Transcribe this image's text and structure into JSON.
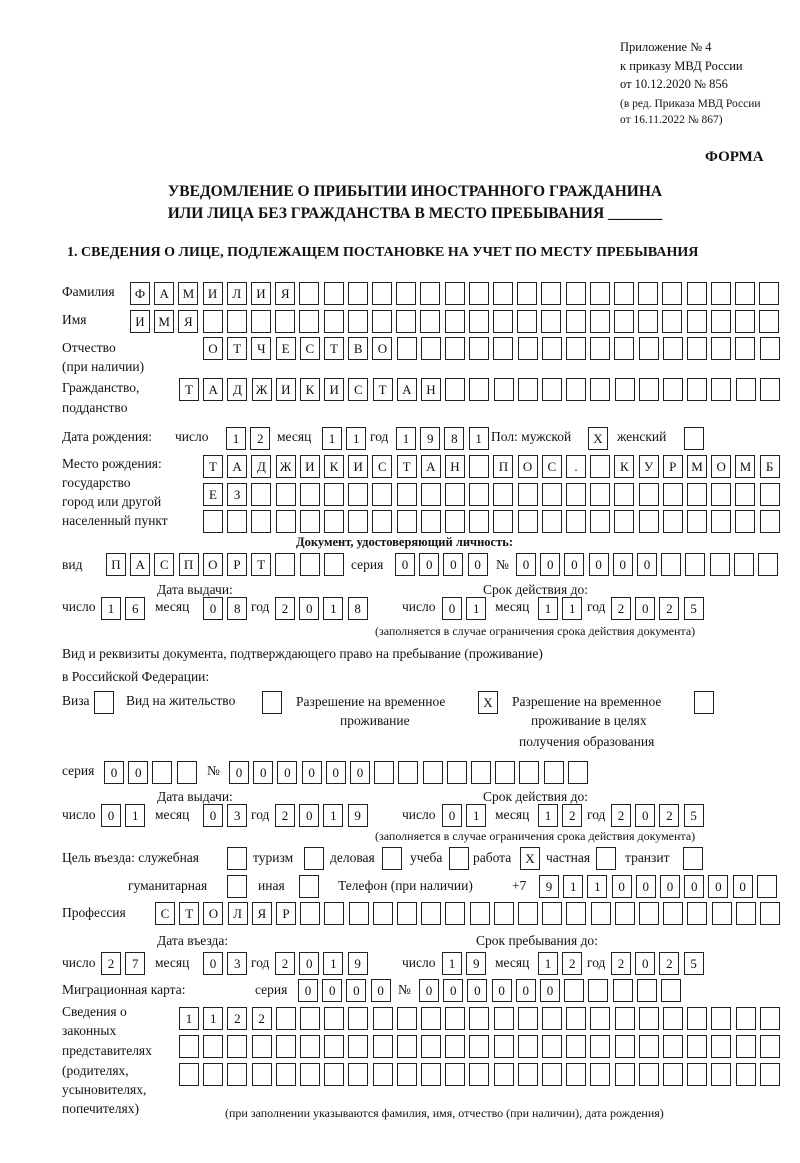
{
  "header": {
    "appendix": "Приложение № 4",
    "order": "к приказу МВД России",
    "order_date": "от 10.12.2020 № 856",
    "revision_1": "(в ред. Приказа МВД России",
    "revision_2": "от 16.11.2022 № 867)",
    "form_label": "ФОРМА",
    "title_1": "УВЕДОМЛЕНИЕ О ПРИБЫТИИ ИНОСТРАННОГО ГРАЖДАНИНА",
    "title_2": "ИЛИ ЛИЦА БЕЗ ГРАЖДАНСТВА В МЕСТО ПРЕБЫВАНИЯ _______"
  },
  "section1": {
    "heading": "1. СВЕДЕНИЯ О ЛИЦЕ, ПОДЛЕЖАЩЕМ ПОСТАНОВКЕ НА УЧЕТ ПО МЕСТУ ПРЕБЫВАНИЯ",
    "surname": {
      "label": "Фамилия",
      "value": "ФАМИЛИЯ"
    },
    "name": {
      "label": "Имя",
      "value": "ИМЯ"
    },
    "patronymic": {
      "label": "Отчество",
      "label_2": "(при наличии)",
      "value": "ОТЧЕСТВО"
    },
    "citizenship": {
      "label": "Гражданство,",
      "label_2": "подданство",
      "value": "ТАДЖИКИСТАН"
    },
    "birth": {
      "label": "Дата рождения:",
      "day_label": "число",
      "day": "12",
      "month_label": "месяц",
      "month": "11",
      "year_label": "год",
      "year": "1981",
      "sex_label": "Пол: мужской",
      "male": "X",
      "female_label": "женский",
      "female": ""
    },
    "birthplace": {
      "label_1": "Место рождения:",
      "label_2": "государство",
      "label_3": "город или другой",
      "label_4": "населенный пункт",
      "row_1": "ТАДЖИКИСТАН ПОС. КУРМОМБ",
      "row_2": "ЕЗ",
      "row_3": ""
    },
    "id_doc": {
      "heading": "Документ, удостоверяющий личность:",
      "kind_label": "вид",
      "kind": "ПАСПОРТ",
      "series_label": "серия",
      "series": "0000",
      "number_label": "№",
      "number": "000000",
      "issue_label": "Дата выдачи:",
      "valid_label": "Срок действия до:",
      "day_label": "число",
      "month_label": "месяц",
      "year_label": "год",
      "issue_day": "16",
      "issue_month": "08",
      "issue_year": "2018",
      "valid_day": "01",
      "valid_month": "11",
      "valid_year": "2025",
      "note": "(заполняется в случае ограничения срока действия документа)"
    },
    "right_doc": {
      "heading_1": "Вид и реквизиты документа, подтверждающего право на пребывание (проживание)",
      "heading_2": "в Российской Федерации:",
      "visa_label": "Виза",
      "visa": "",
      "residence_label": "Вид на жительство",
      "residence": "",
      "trp_label_1": "Разрешение на временное",
      "trp_label_2": "проживание",
      "trp": "X",
      "trp_edu_label_1": "Разрешение на временное",
      "trp_edu_label_2": "проживание в целях",
      "trp_edu_label_3": "получения образования",
      "trp_edu": "",
      "series_label": "серия",
      "series": "00",
      "number_label": "№",
      "number": "000000",
      "issue_label": "Дата выдачи:",
      "valid_label": "Срок действия до:",
      "day_label": "число",
      "month_label": "месяц",
      "year_label": "год",
      "issue_day": "01",
      "issue_month": "03",
      "issue_year": "2019",
      "valid_day": "01",
      "valid_month": "12",
      "valid_year": "2025",
      "note": "(заполняется в случае ограничения срока действия документа)"
    },
    "purpose": {
      "label": "Цель въезда: служебная",
      "official": "",
      "tourism_label": "туризм",
      "tourism": "",
      "business_label": "деловая",
      "business": "",
      "study_label": "учеба",
      "study": "",
      "work_label": "работа",
      "work": "X",
      "private_label": "частная",
      "private": "",
      "transit_label": "транзит",
      "transit": "",
      "humanitarian_label": "гуманитарная",
      "humanitarian": "",
      "other_label": "иная",
      "other": ""
    },
    "phone": {
      "label": "Телефон (при наличии)",
      "prefix": "+7",
      "value": "911000000"
    },
    "profession": {
      "label": "Профессия",
      "value": "СТОЛЯР"
    },
    "entry": {
      "entry_label": "Дата въезда:",
      "stay_label": "Срок пребывания до:",
      "day_label": "число",
      "month_label": "месяц",
      "year_label": "год",
      "entry_day": "27",
      "entry_month": "03",
      "entry_year": "2019",
      "stay_day": "19",
      "stay_month": "12",
      "stay_year": "2025"
    },
    "migration_card": {
      "label": "Миграционная карта:",
      "series_label": "серия",
      "series": "0000",
      "number_label": "№",
      "number": "000000"
    },
    "representatives": {
      "label_1": "Сведения о",
      "label_2": "законных",
      "label_3": "представителях",
      "label_4": "(родителях,",
      "label_5": "усыновителях,",
      "label_6": "попечителях)",
      "row_1": "1122",
      "row_2": "",
      "row_3": "",
      "note": "(при заполнении указываются фамилия, имя, отчество (при наличии), дата рождения)"
    }
  }
}
